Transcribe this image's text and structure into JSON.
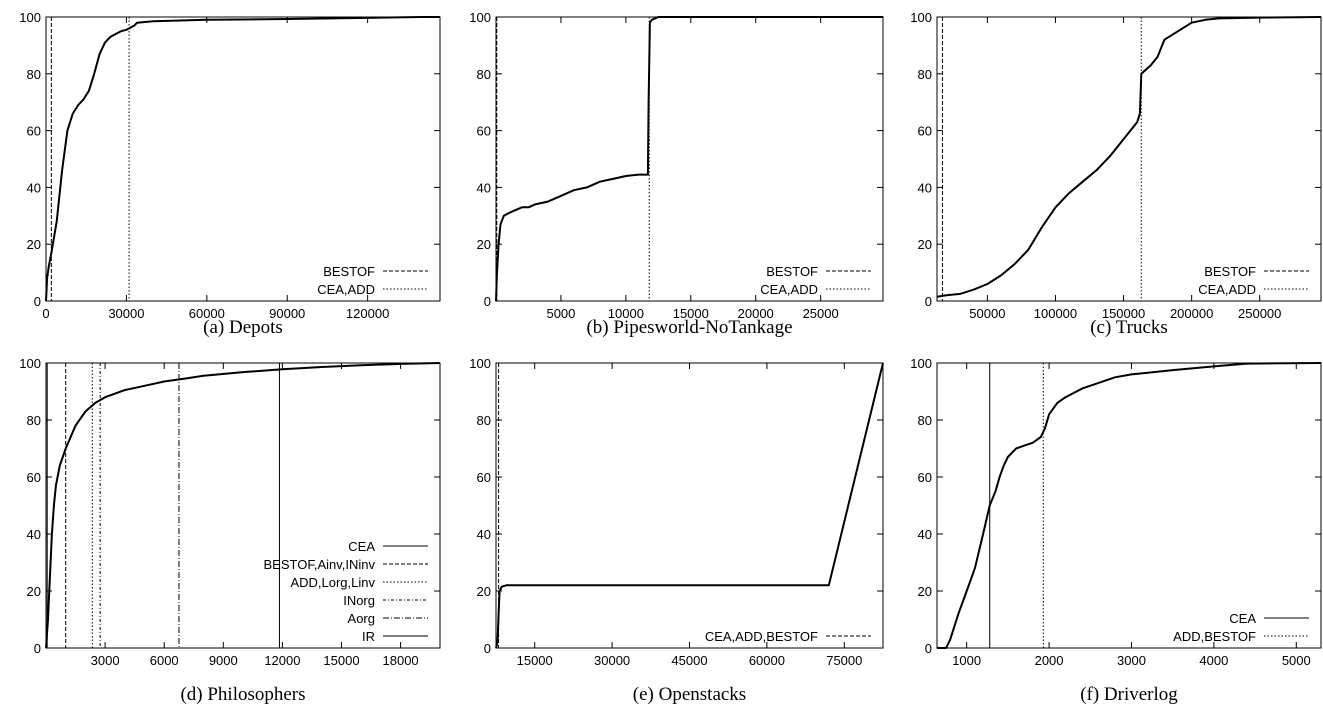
{
  "chart_data": [
    {
      "type": "line",
      "caption": "(a) Depots",
      "xlim": [
        0,
        147000
      ],
      "ylim": [
        0,
        100
      ],
      "xticks": [
        0,
        30000,
        60000,
        90000,
        120000
      ],
      "yticks": [
        0,
        20,
        40,
        60,
        80,
        100
      ],
      "legend_position": "bottom-right",
      "legend": [
        "BESTOF",
        "CEA,ADD"
      ],
      "series": [
        {
          "name": "curve",
          "x": [
            0,
            400,
            1000,
            2000,
            4000,
            6000,
            8000,
            10000,
            12000,
            14000,
            16000,
            18000,
            20000,
            22000,
            24000,
            26000,
            28000,
            30000,
            31000,
            32000,
            33000,
            34000,
            40000,
            60000,
            90000,
            120000,
            140000,
            147000
          ],
          "y": [
            0,
            8,
            12,
            17,
            28,
            46,
            60,
            66,
            69,
            71,
            74,
            80,
            87,
            91,
            93,
            94,
            95,
            95.5,
            96,
            96.5,
            97,
            98,
            98.5,
            99,
            99.3,
            99.7,
            100,
            100
          ]
        }
      ],
      "vlines": [
        {
          "name": "BESTOF",
          "x": 2000
        },
        {
          "name": "CEA,ADD",
          "x": 31000
        }
      ]
    },
    {
      "type": "line",
      "caption": "(b) Pipesworld-NoTankage",
      "xlim": [
        0,
        29800
      ],
      "ylim": [
        0,
        100
      ],
      "xticks": [
        5000,
        10000,
        15000,
        20000,
        25000
      ],
      "yticks": [
        0,
        20,
        40,
        60,
        80,
        100
      ],
      "legend_position": "bottom-right",
      "legend": [
        "BESTOF",
        "CEA,ADD"
      ],
      "series": [
        {
          "name": "curve",
          "x": [
            0,
            80,
            200,
            350,
            600,
            1000,
            1500,
            2000,
            2500,
            3000,
            4000,
            5000,
            6000,
            7000,
            8000,
            9000,
            10000,
            11000,
            11700,
            11750,
            11850,
            12000,
            12500,
            29800
          ],
          "y": [
            0,
            10,
            20,
            27,
            30,
            31,
            32,
            33,
            33,
            34,
            35,
            37,
            39,
            40,
            42,
            43,
            44,
            44.5,
            44.5,
            70,
            98,
            99,
            100,
            100
          ]
        }
      ],
      "vlines": [
        {
          "name": "BESTOF",
          "x": 60
        },
        {
          "name": "CEA,ADD",
          "x": 11800
        }
      ]
    },
    {
      "type": "line",
      "caption": "(c) Trucks",
      "xlim": [
        13000,
        295000
      ],
      "ylim": [
        0,
        100
      ],
      "xticks": [
        50000,
        100000,
        150000,
        200000,
        250000
      ],
      "yticks": [
        0,
        20,
        40,
        60,
        80,
        100
      ],
      "legend_position": "bottom-right",
      "legend": [
        "BESTOF",
        "CEA,ADD"
      ],
      "series": [
        {
          "name": "curve",
          "x": [
            13000,
            20000,
            30000,
            40000,
            50000,
            60000,
            70000,
            80000,
            90000,
            100000,
            110000,
            120000,
            130000,
            140000,
            150000,
            160000,
            162000,
            163000,
            170000,
            175000,
            180000,
            190000,
            200000,
            210000,
            220000,
            250000,
            295000
          ],
          "y": [
            1.5,
            2,
            2.5,
            4,
            6,
            9,
            13,
            18,
            26,
            33,
            38,
            42,
            46,
            51,
            57,
            63,
            66,
            80,
            83,
            86,
            92,
            95,
            98,
            99,
            99.5,
            99.8,
            100
          ]
        }
      ],
      "vlines": [
        {
          "name": "BESTOF",
          "x": 17000
        },
        {
          "name": "CEA,ADD",
          "x": 163000
        }
      ]
    },
    {
      "type": "line",
      "caption": "(d) Philosophers",
      "xlim": [
        0,
        20000
      ],
      "ylim": [
        0,
        100
      ],
      "xticks": [
        3000,
        6000,
        9000,
        12000,
        15000,
        18000
      ],
      "yticks": [
        0,
        20,
        40,
        60,
        80,
        100
      ],
      "legend_position": "center-right",
      "legend": [
        "CEA",
        "BESTOF,Ainv,INinv",
        "ADD,Lorg,Linv",
        "INorg",
        "Aorg",
        "IR"
      ],
      "series": [
        {
          "name": "curve",
          "x": [
            0,
            100,
            200,
            300,
            400,
            500,
            700,
            1000,
            1500,
            2000,
            2500,
            3000,
            4000,
            5000,
            6000,
            7000,
            8000,
            10000,
            12000,
            14000,
            16000,
            18000,
            20000
          ],
          "y": [
            0,
            10,
            25,
            40,
            50,
            57,
            64,
            70,
            78,
            83,
            86,
            88,
            90.5,
            92,
            93.5,
            94.5,
            95.5,
            96.8,
            97.8,
            98.6,
            99.2,
            99.7,
            100
          ]
        }
      ],
      "vlines": [
        {
          "name": "CEA",
          "x": 60
        },
        {
          "name": "BESTOF,Ainv,INinv",
          "x": 1000
        },
        {
          "name": "ADD,Lorg,Linv",
          "x": 2350
        },
        {
          "name": "INorg",
          "x": 2750
        },
        {
          "name": "Aorg",
          "x": 6750
        },
        {
          "name": "IR",
          "x": 11850
        }
      ]
    },
    {
      "type": "line",
      "caption": "(e) Openstacks",
      "xlim": [
        7500,
        82500
      ],
      "ylim": [
        0,
        100
      ],
      "xticks": [
        15000,
        30000,
        45000,
        60000,
        75000
      ],
      "yticks": [
        0,
        20,
        40,
        60,
        80,
        100
      ],
      "legend_position": "bottom-right",
      "legend": [
        "CEA,ADD,BESTOF"
      ],
      "series": [
        {
          "name": "curve",
          "x": [
            7500,
            7800,
            8000,
            8200,
            8600,
            9500,
            72000,
            82500
          ],
          "y": [
            0,
            2,
            12,
            20,
            21.5,
            22,
            22,
            100
          ]
        }
      ],
      "vlines": [
        {
          "name": "CEA,ADD,BESTOF",
          "x": 8000
        }
      ]
    },
    {
      "type": "line",
      "caption": "(f) Driverlog",
      "xlim": [
        640,
        5300
      ],
      "ylim": [
        0,
        100
      ],
      "xticks": [
        1000,
        2000,
        3000,
        4000,
        5000
      ],
      "yticks": [
        0,
        20,
        40,
        60,
        80,
        100
      ],
      "legend_position": "bottom-right",
      "legend": [
        "CEA",
        "ADD,BESTOF"
      ],
      "series": [
        {
          "name": "curve",
          "x": [
            640,
            750,
            800,
            900,
            1000,
            1100,
            1200,
            1280,
            1350,
            1400,
            1450,
            1500,
            1600,
            1700,
            1800,
            1900,
            1950,
            2000,
            2100,
            2200,
            2400,
            2600,
            2800,
            3000,
            3500,
            4000,
            4400,
            5300
          ],
          "y": [
            0,
            0,
            3,
            12,
            20,
            28,
            40,
            50,
            55,
            60,
            64,
            67,
            70,
            71,
            72,
            74,
            77,
            82,
            86,
            88,
            91,
            93,
            95,
            96,
            97.5,
            98.8,
            99.8,
            100
          ]
        }
      ],
      "vlines": [
        {
          "name": "CEA",
          "x": 1280
        },
        {
          "name": "ADD,BESTOF",
          "x": 1930
        }
      ]
    }
  ]
}
